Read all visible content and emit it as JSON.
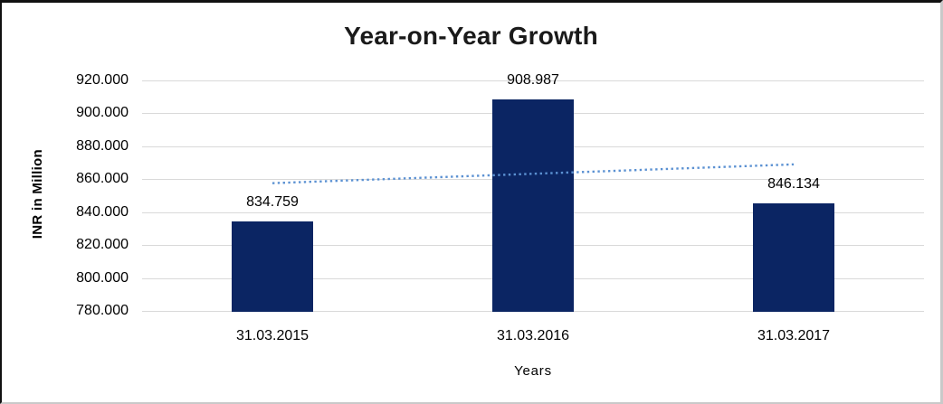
{
  "chart_data": {
    "type": "bar",
    "title": "Year-on-Year Growth",
    "categories": [
      "31.03.2015",
      "31.03.2016",
      "31.03.2017"
    ],
    "values": [
      834.759,
      908.987,
      846.134
    ],
    "value_labels": [
      "834.759",
      "908.987",
      "846.134"
    ],
    "xlabel": "Years",
    "ylabel": "INR in Million",
    "ylim": [
      780,
      920
    ],
    "ytick_step": 20,
    "ytick_labels": [
      "920.000",
      "900.000",
      "880.000",
      "860.000",
      "840.000",
      "820.000",
      "800.000",
      "780.000"
    ],
    "grid": true,
    "legend": "none",
    "bar_color": "#0b2563",
    "gridline_color": "#d9d9d9",
    "trendline": {
      "type": "linear",
      "style": "dotted",
      "color": "#5b91d2",
      "start_value": 857.6,
      "end_value": 869.0
    }
  }
}
